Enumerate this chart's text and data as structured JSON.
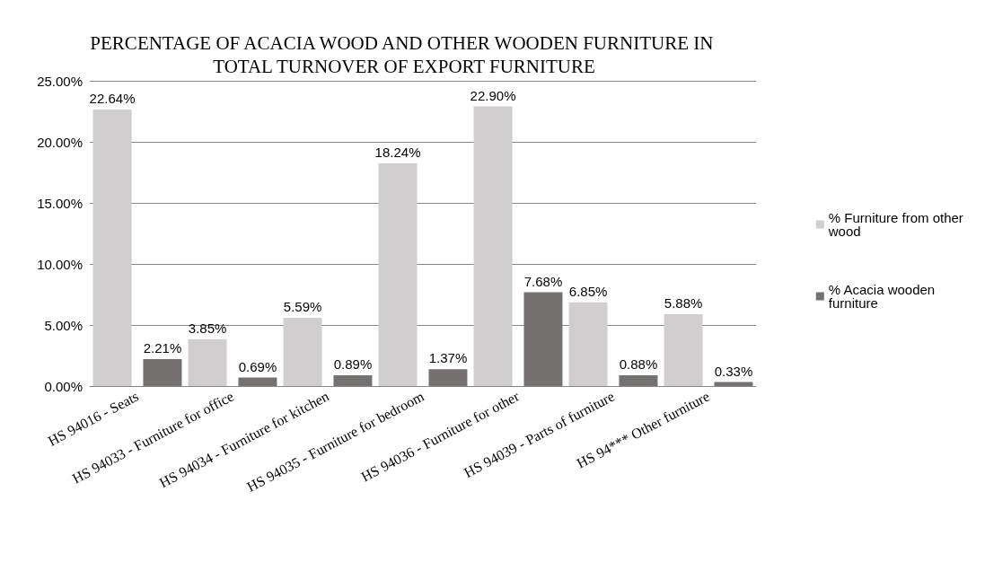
{
  "chart_data": {
    "type": "bar",
    "title": "PERCENTAGE OF ACACIA WOOD AND OTHER WOODEN FURNITURE IN TOTAL TURNOVER OF EXPORT FURNITURE",
    "categories": [
      "HS 94016 - Seats",
      "HS 94033 - Furniture for office",
      "HS 94034 - Furniture for kitchen",
      "HS 94035 - Furniture for bedroom",
      "HS 94036 - Furniture for other",
      "HS 94039 - Parts of furniture",
      "HS 94*** Other furniture"
    ],
    "series": [
      {
        "name": "% Furniture from other wood",
        "color": "#d0cece",
        "values": [
          22.64,
          3.85,
          5.59,
          18.24,
          22.9,
          6.85,
          5.88
        ],
        "value_labels": [
          "22.64%",
          "3.85%",
          "5.59%",
          "18.24%",
          "22.90%",
          "6.85%",
          "5.88%"
        ]
      },
      {
        "name": "% Acacia wooden furniture",
        "color": "#767171",
        "values": [
          2.21,
          0.69,
          0.89,
          1.37,
          7.68,
          0.88,
          0.33
        ],
        "value_labels": [
          "2.21%",
          "0.69%",
          "0.89%",
          "1.37%",
          "7.68%",
          "0.88%",
          "0.33%"
        ]
      }
    ],
    "ylim": [
      0,
      25
    ],
    "yticks": [
      {
        "value": 0,
        "label": "0.00%"
      },
      {
        "value": 5,
        "label": "5.00%"
      },
      {
        "value": 10,
        "label": "10.00%"
      },
      {
        "value": 15,
        "label": "15.00%"
      },
      {
        "value": 20,
        "label": "20.00%"
      },
      {
        "value": 25,
        "label": "25.00%"
      }
    ],
    "grid": "y",
    "legend": "right"
  }
}
